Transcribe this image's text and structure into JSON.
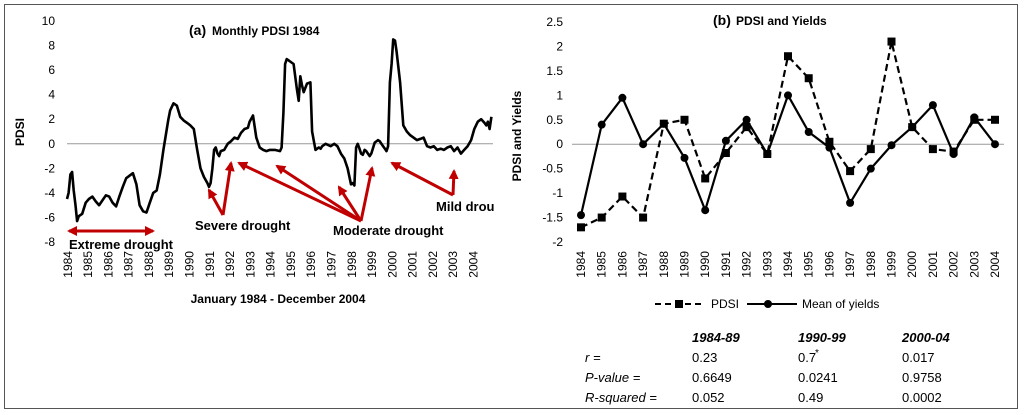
{
  "chart_data": [
    {
      "type": "line",
      "title_prefix": "(a)",
      "title": "Monthly PDSI 1984",
      "xlabel": "January 1984 - December 2004",
      "ylabel": "PDSI",
      "ylim": [
        -8,
        10
      ],
      "y_ticks": [
        "-8",
        "-6",
        "-4",
        "-2",
        "0",
        "2",
        "4",
        "6",
        "8",
        "10"
      ],
      "x_ticks": [
        "1984",
        "1985",
        "1986",
        "1987",
        "1988",
        "1989",
        "1990",
        "1991",
        "1992",
        "1993",
        "1994",
        "1995",
        "1996",
        "1997",
        "1998",
        "1999",
        "2000",
        "2001",
        "2002",
        "2003",
        "2004"
      ],
      "x": [
        1984.0,
        1984.08,
        1984.17,
        1984.25,
        1984.33,
        1984.42,
        1984.5,
        1984.58,
        1984.75,
        1984.92,
        1985.08,
        1985.25,
        1985.42,
        1985.58,
        1985.75,
        1985.92,
        1986.08,
        1986.25,
        1986.42,
        1986.58,
        1986.75,
        1986.92,
        1987.08,
        1987.25,
        1987.42,
        1987.58,
        1987.75,
        1987.92,
        1988.08,
        1988.25,
        1988.42,
        1988.58,
        1988.75,
        1988.92,
        1989.0,
        1989.08,
        1989.25,
        1989.42,
        1989.58,
        1989.75,
        1989.92,
        1990.08,
        1990.25,
        1990.42,
        1990.58,
        1990.75,
        1990.92,
        1991.0,
        1991.08,
        1991.17,
        1991.25,
        1991.33,
        1991.42,
        1991.5,
        1991.58,
        1991.75,
        1991.92,
        1992.08,
        1992.25,
        1992.42,
        1992.58,
        1992.75,
        1992.92,
        1993.0,
        1993.17,
        1993.33,
        1993.5,
        1993.67,
        1993.83,
        1994.0,
        1994.25,
        1994.5,
        1994.58,
        1994.67,
        1994.75,
        1994.83,
        1994.92,
        1995.0,
        1995.17,
        1995.33,
        1995.42,
        1995.5,
        1995.58,
        1995.67,
        1995.83,
        1996.0,
        1996.08,
        1996.17,
        1996.25,
        1996.33,
        1996.42,
        1996.5,
        1996.58,
        1996.75,
        1997.0,
        1997.17,
        1997.33,
        1997.5,
        1997.67,
        1997.83,
        1998.0,
        1998.08,
        1998.17,
        1998.25,
        1998.33,
        1998.42,
        1998.5,
        1998.58,
        1998.67,
        1998.75,
        1998.92,
        1999.0,
        1999.17,
        1999.33,
        1999.42,
        1999.5,
        1999.58,
        1999.67,
        1999.75,
        1999.83,
        1999.92,
        2000.0,
        2000.08,
        2000.17,
        2000.25,
        2000.42,
        2000.58,
        2000.75,
        2000.92,
        2001.08,
        2001.25,
        2001.42,
        2001.58,
        2001.75,
        2001.92,
        2002.08,
        2002.25,
        2002.42,
        2002.58,
        2002.75,
        2002.92,
        2003.08,
        2003.25,
        2003.42,
        2003.58,
        2003.75,
        2003.92,
        2004.08,
        2004.25,
        2004.42,
        2004.58,
        2004.67,
        2004.75,
        2004.83,
        2004.92
      ],
      "values": [
        -4.5,
        -4.0,
        -2.5,
        -2.3,
        -3.8,
        -5.0,
        -6.3,
        -5.9,
        -5.7,
        -4.8,
        -4.5,
        -4.3,
        -4.7,
        -5.0,
        -4.6,
        -4.2,
        -4.3,
        -4.8,
        -5.1,
        -4.3,
        -3.5,
        -2.8,
        -2.6,
        -2.4,
        -3.3,
        -5.0,
        -5.5,
        -5.6,
        -4.8,
        -4.0,
        -3.8,
        -2.5,
        -0.5,
        1.2,
        2.0,
        2.7,
        3.3,
        3.1,
        2.2,
        1.9,
        1.7,
        1.5,
        1.2,
        -0.5,
        -2.0,
        -2.7,
        -3.2,
        -3.5,
        -3.2,
        -2.0,
        -0.5,
        -0.3,
        -0.8,
        -1.0,
        -0.6,
        -0.5,
        0.0,
        0.2,
        0.5,
        0.4,
        0.9,
        1.2,
        1.3,
        1.8,
        2.3,
        0.5,
        -0.3,
        -0.5,
        -0.6,
        -0.5,
        -0.5,
        -0.6,
        -0.3,
        2.5,
        6.5,
        6.9,
        6.8,
        6.7,
        6.5,
        4.5,
        3.5,
        5.5,
        4.8,
        4.2,
        4.9,
        5.0,
        1.0,
        0.2,
        -0.5,
        -0.4,
        -0.3,
        -0.4,
        -0.2,
        0.0,
        -0.2,
        0.0,
        -0.2,
        -0.8,
        -1.2,
        -2.0,
        -3.3,
        -3.2,
        -3.4,
        -0.3,
        0.0,
        -0.4,
        -0.8,
        -0.9,
        -0.5,
        -0.6,
        -1.0,
        -0.8,
        0.1,
        0.3,
        0.2,
        0.0,
        -0.2,
        -0.4,
        -0.6,
        -0.2,
        5.0,
        6.5,
        8.5,
        8.4,
        7.5,
        5.0,
        1.5,
        1.0,
        0.7,
        0.5,
        0.3,
        0.4,
        0.5,
        -0.2,
        -0.3,
        -0.2,
        -0.5,
        -0.4,
        -0.5,
        -0.3,
        -0.2,
        -0.6,
        -0.3,
        -0.8,
        -0.5,
        -0.2,
        0.3,
        1.2,
        1.8,
        2.0,
        1.7,
        1.5,
        1.8,
        1.2,
        2.2
      ],
      "annotations": [
        "Extreme drought",
        "Severe drought",
        "Moderate drought",
        "Mild drou"
      ]
    },
    {
      "type": "line",
      "title_prefix": "(b)",
      "title": "PDSI and Yields",
      "ylabel": "PDSI and Yields",
      "ylim": [
        -2,
        2.5
      ],
      "y_ticks": [
        "-2",
        "-1.5",
        "-1",
        "-0.5",
        "0",
        "0.5",
        "1",
        "1.5",
        "2",
        "2.5"
      ],
      "categories": [
        "1984",
        "1985",
        "1986",
        "1987",
        "1988",
        "1989",
        "1990",
        "1991",
        "1992",
        "1993",
        "1994",
        "1995",
        "1996",
        "1997",
        "1998",
        "1999",
        "2000",
        "2001",
        "2002",
        "2003",
        "2004"
      ],
      "series": [
        {
          "name": "PDSI",
          "style": "dashed-square",
          "values": [
            -1.7,
            -1.5,
            -1.07,
            -1.5,
            0.42,
            0.5,
            -0.7,
            -0.18,
            0.35,
            -0.2,
            1.8,
            1.35,
            0.05,
            -0.55,
            -0.1,
            2.1,
            0.35,
            -0.1,
            -0.15,
            0.5,
            0.5
          ]
        },
        {
          "name": "Mean of yields",
          "style": "solid-circle",
          "values": [
            -1.45,
            0.4,
            0.95,
            0.0,
            0.42,
            -0.28,
            -1.35,
            0.07,
            0.5,
            -0.2,
            1.0,
            0.25,
            -0.07,
            -1.2,
            -0.5,
            -0.02,
            0.35,
            0.8,
            -0.2,
            0.55,
            0.0
          ]
        }
      ]
    }
  ],
  "stats_table": {
    "headers": [
      "1984-89",
      "1990-99",
      "2000-04"
    ],
    "rows": [
      {
        "label": "r =",
        "values": [
          "0.23",
          "0.7",
          "0.017"
        ],
        "mark": "*"
      },
      {
        "label": "P-value =",
        "values": [
          "0.6649",
          "0.0241",
          "0.9758"
        ]
      },
      {
        "label": "R-squared =",
        "values": [
          "0.052",
          "0.49",
          "0.0002"
        ]
      }
    ]
  }
}
